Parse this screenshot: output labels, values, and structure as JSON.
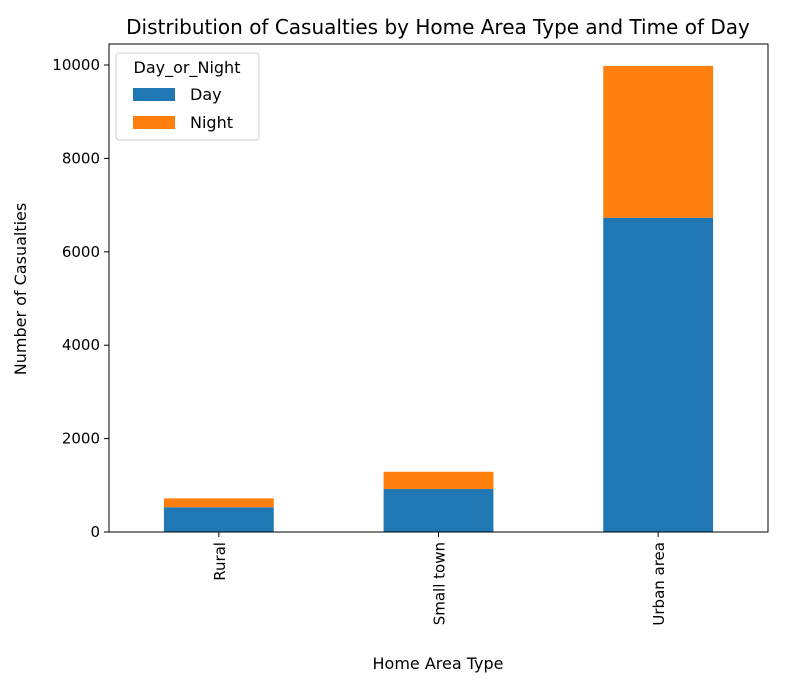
{
  "chart_data": {
    "type": "bar",
    "stacked": true,
    "title": "Distribution of Casualties by Home Area Type and Time of Day",
    "xlabel": "Home Area Type",
    "ylabel": "Number of Casualties",
    "categories": [
      "Rural",
      "Small town",
      "Urban area"
    ],
    "series": [
      {
        "name": "Day",
        "values": [
          530,
          920,
          6730
        ],
        "color": "#1f77b4"
      },
      {
        "name": "Night",
        "values": [
          190,
          370,
          3250
        ],
        "color": "#ff7f0e"
      }
    ],
    "ylim": [
      0,
      10450
    ],
    "yticks": [
      0,
      2000,
      4000,
      6000,
      8000,
      10000
    ],
    "grid": false,
    "legend": {
      "title": "Day_or_Night",
      "placement": "top-left"
    }
  }
}
